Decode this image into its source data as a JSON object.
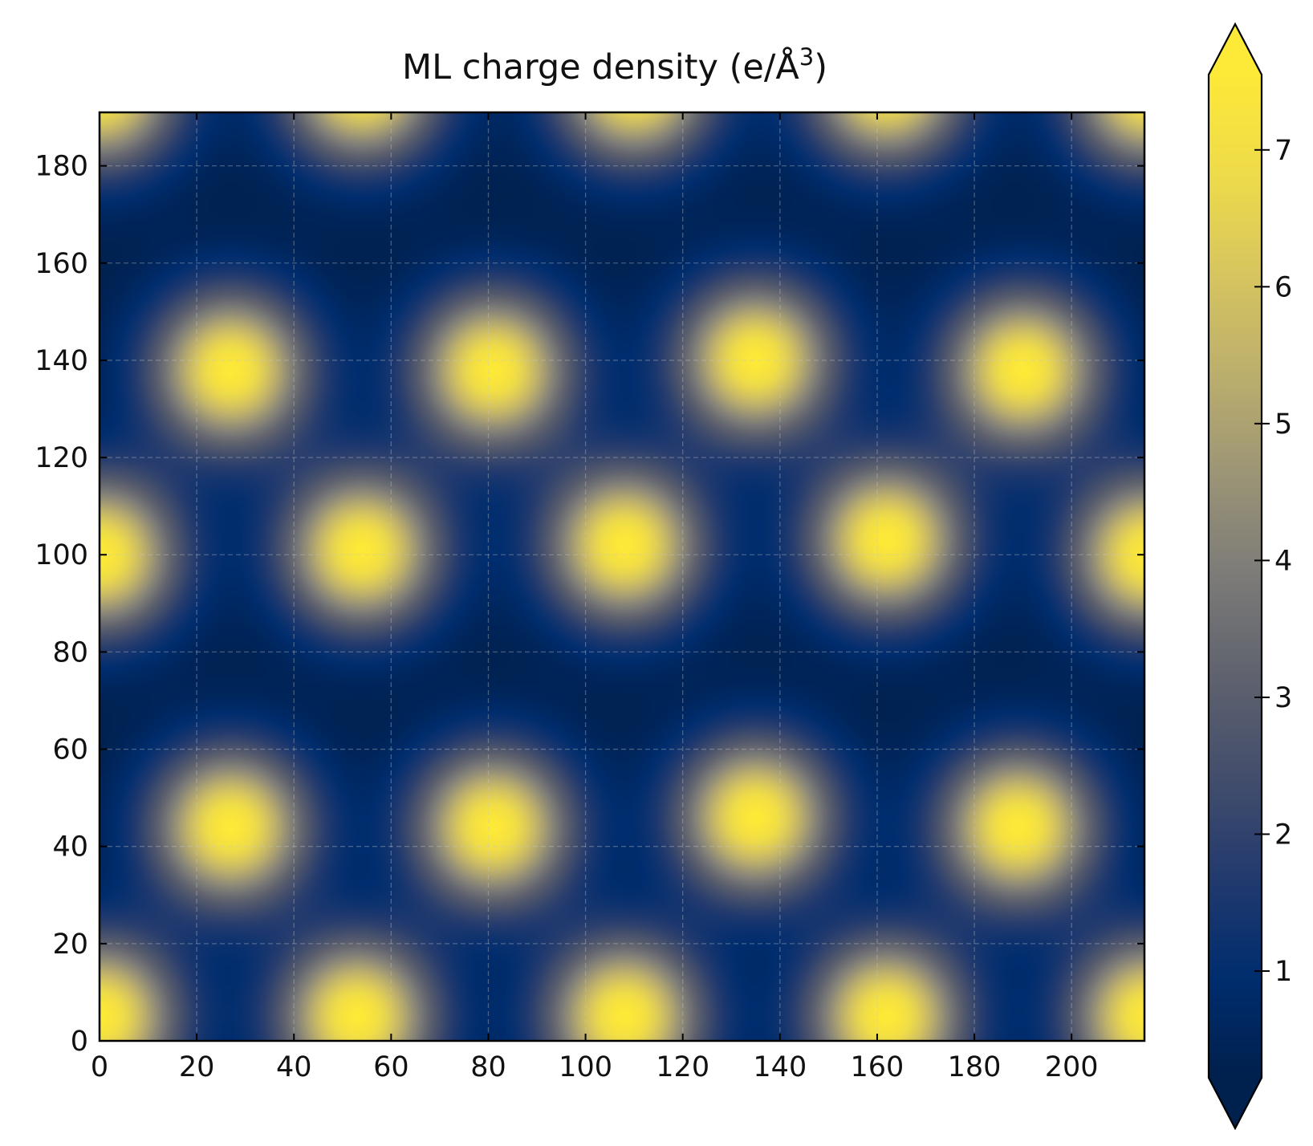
{
  "chart_data": {
    "type": "heatmap",
    "title": "ML charge density (e/Å",
    "title_superscript": "3",
    "title_suffix": ")",
    "xlim": [
      0,
      215
    ],
    "ylim": [
      0,
      191
    ],
    "x_ticks": [
      0,
      20,
      40,
      60,
      80,
      100,
      120,
      140,
      160,
      180,
      200
    ],
    "y_ticks": [
      0,
      20,
      40,
      60,
      80,
      100,
      120,
      140,
      160,
      180
    ],
    "grid": true,
    "colormap": "cividis",
    "colorbar": {
      "vmin": 0.22,
      "vmax": 7.55,
      "ticks": [
        1,
        2,
        3,
        4,
        5,
        6,
        7
      ],
      "extend": "both",
      "placement": "right"
    },
    "background_density": 0.22,
    "peak_density": 7.55,
    "peak_sigma": 11,
    "peaks": [
      {
        "x": 27,
        "y": 138
      },
      {
        "x": 81,
        "y": 138
      },
      {
        "x": 135,
        "y": 140
      },
      {
        "x": 190,
        "y": 138
      },
      {
        "x": 0,
        "y": 100
      },
      {
        "x": 54,
        "y": 101
      },
      {
        "x": 108,
        "y": 102
      },
      {
        "x": 162,
        "y": 103
      },
      {
        "x": 216,
        "y": 100
      },
      {
        "x": 27,
        "y": 44
      },
      {
        "x": 81,
        "y": 44
      },
      {
        "x": 135,
        "y": 46
      },
      {
        "x": 189,
        "y": 44
      },
      {
        "x": 0,
        "y": 5
      },
      {
        "x": 53,
        "y": 5
      },
      {
        "x": 108,
        "y": 5
      },
      {
        "x": 162,
        "y": 5
      },
      {
        "x": 216,
        "y": 5
      },
      {
        "x": 0,
        "y": 196
      },
      {
        "x": 54,
        "y": 197
      },
      {
        "x": 110,
        "y": 197
      },
      {
        "x": 162,
        "y": 197
      },
      {
        "x": 216,
        "y": 196
      }
    ]
  }
}
